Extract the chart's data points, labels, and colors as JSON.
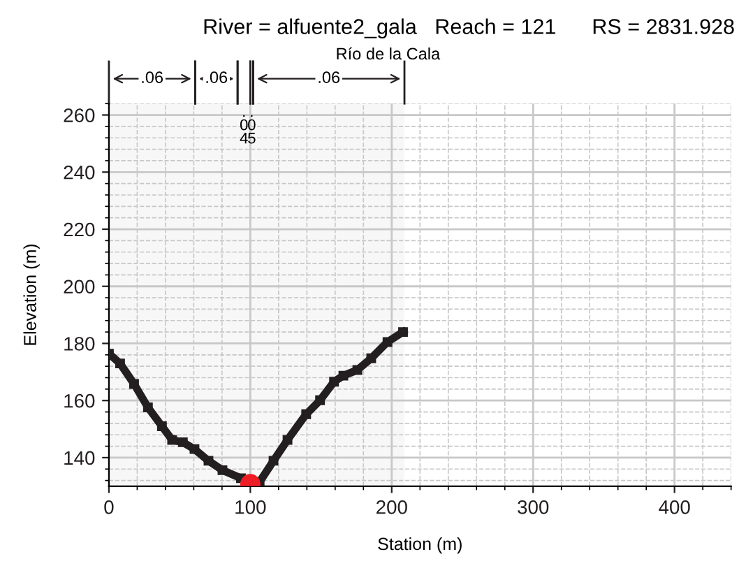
{
  "chart_data": {
    "type": "line",
    "title": "River = alfuente2_gala   Reach = 121      RS = 2831.928",
    "subtitle": "Río de la Cala",
    "xlabel": "Station (m)",
    "ylabel": "Elevation (m)",
    "xlim": [
      0,
      440
    ],
    "xticks": [
      0,
      100,
      200,
      300,
      400
    ],
    "ylim": [
      130,
      264
    ],
    "yticks": [
      140,
      160,
      180,
      200,
      220,
      240,
      260
    ],
    "grid": true,
    "legend": false,
    "series": [
      {
        "color": "#231f20",
        "marker": "square",
        "x": [
          0,
          7.9,
          17.8,
          27.6,
          37.5,
          44.7,
          52.3,
          60.5,
          70.4,
          80.3,
          93.4,
          100,
          106.6,
          116.4,
          126.3,
          139.5,
          149.3,
          159.2,
          165.8,
          175.7,
          185.5,
          197,
          208
        ],
        "values": [
          176.4,
          173,
          165.8,
          157.6,
          151,
          146.2,
          145.4,
          143,
          138.9,
          135.6,
          132.8,
          130.7,
          131.5,
          138.9,
          146.2,
          155.2,
          160.1,
          166.6,
          168.7,
          170.7,
          174.8,
          180.5,
          184
        ]
      },
      {
        "type": "scatter",
        "color": "#ee1c24",
        "marker": "circle",
        "x": [
          100
        ],
        "values": [
          130.7
        ]
      }
    ],
    "bands": [
      {
        "axis": "x",
        "from": 0,
        "to": 61,
        "label": ".06"
      },
      {
        "axis": "x",
        "from": 61,
        "to": 91,
        "label": ".06"
      },
      {
        "axis": "x",
        "from": 91,
        "to": 100,
        "label": ".04"
      },
      {
        "axis": "x",
        "from": 100,
        "to": 102,
        "label": ".05"
      },
      {
        "axis": "x",
        "from": 102,
        "to": 209,
        "label": ".06"
      }
    ]
  }
}
